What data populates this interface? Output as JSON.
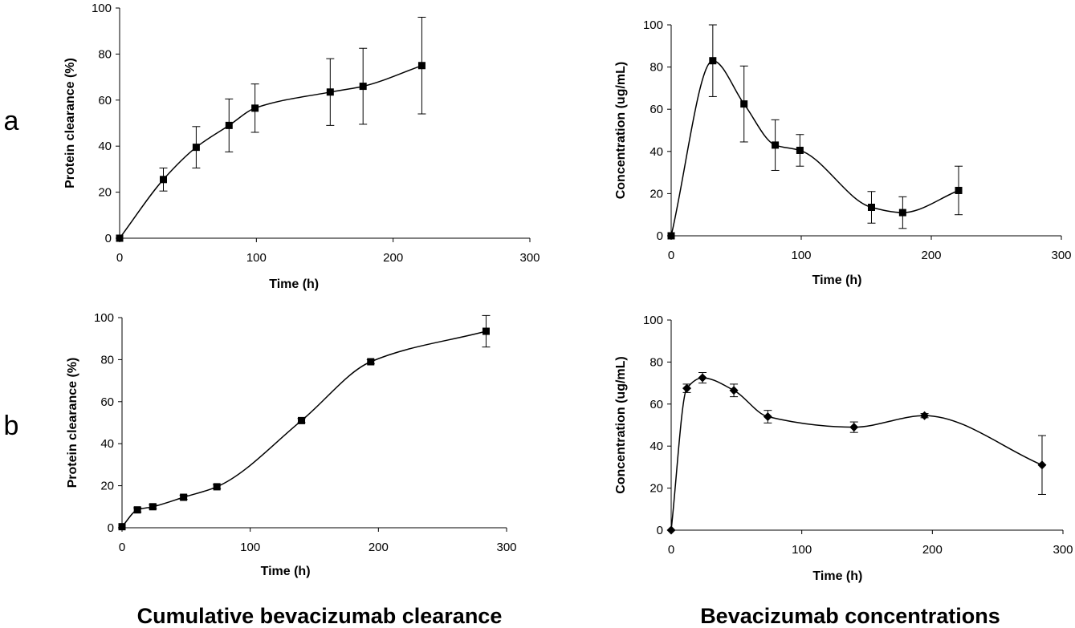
{
  "row_labels": [
    "a",
    "b"
  ],
  "column_labels": [
    "Cumulative bevacizumab clearance",
    "Bevacizumab concentrations"
  ],
  "chart_data": [
    {
      "type": "line",
      "panel": "a-left",
      "xlabel": "Time (h)",
      "ylabel": "Protein clearance (%)",
      "xlim": [
        0,
        300
      ],
      "ylim": [
        0,
        100
      ],
      "xticks": [
        0,
        100,
        200,
        300
      ],
      "yticks": [
        0,
        20,
        40,
        60,
        80,
        100
      ],
      "marker": "square",
      "series": [
        {
          "x": [
            0,
            32,
            56,
            80,
            99,
            154,
            178,
            221
          ],
          "y": [
            0,
            25.5,
            39.5,
            49,
            56.5,
            63.5,
            66,
            75
          ],
          "err": [
            0,
            5,
            9,
            11.5,
            10.5,
            14.5,
            16.5,
            21
          ]
        }
      ]
    },
    {
      "type": "line",
      "panel": "a-right",
      "xlabel": "Time (h)",
      "ylabel": "Concentration (ug/mL)",
      "xlim": [
        0,
        300
      ],
      "ylim": [
        0,
        100
      ],
      "xticks": [
        0,
        100,
        200,
        300
      ],
      "yticks": [
        0,
        20,
        40,
        60,
        80,
        100
      ],
      "marker": "square",
      "series": [
        {
          "x": [
            0,
            32,
            56,
            80,
            99,
            154,
            178,
            221
          ],
          "y": [
            0,
            83,
            62.5,
            43,
            40.5,
            13.5,
            11,
            21.5
          ],
          "err": [
            0,
            17,
            18,
            12,
            7.5,
            7.5,
            7.5,
            11.5
          ]
        }
      ]
    },
    {
      "type": "line",
      "panel": "b-left",
      "xlabel": "Time (h)",
      "ylabel": "Protein clearance (%)",
      "xlim": [
        0,
        300
      ],
      "ylim": [
        0,
        100
      ],
      "xticks": [
        0,
        100,
        200,
        300
      ],
      "yticks": [
        0,
        20,
        40,
        60,
        80,
        100
      ],
      "marker": "square",
      "series": [
        {
          "x": [
            0,
            12,
            24,
            48,
            74,
            140,
            194,
            284
          ],
          "y": [
            0.5,
            8.5,
            10,
            14.5,
            19.5,
            51,
            79,
            93.5
          ],
          "err": [
            0,
            1,
            1,
            1,
            1,
            1,
            1,
            7.5
          ]
        }
      ]
    },
    {
      "type": "line",
      "panel": "b-right",
      "xlabel": "Time (h)",
      "ylabel": "Concentration (ug/mL)",
      "xlim": [
        0,
        300
      ],
      "ylim": [
        0,
        100
      ],
      "xticks": [
        0,
        100,
        200,
        300
      ],
      "yticks": [
        0,
        20,
        40,
        60,
        80,
        100
      ],
      "marker": "diamond",
      "series": [
        {
          "x": [
            0,
            12,
            24,
            48,
            74,
            140,
            194,
            284
          ],
          "y": [
            0,
            67.5,
            72.5,
            66.5,
            54,
            49,
            54.5,
            31
          ],
          "err": [
            0,
            2,
            2.5,
            3,
            3,
            2.5,
            1,
            14
          ]
        }
      ]
    }
  ]
}
